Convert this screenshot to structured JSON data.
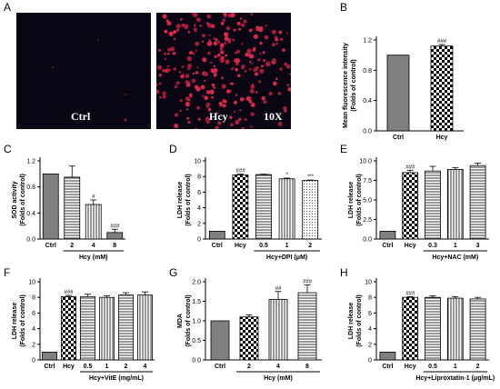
{
  "panel_letters": {
    "A": "A",
    "B": "B",
    "C": "C",
    "D": "D",
    "E": "E",
    "F": "F",
    "G": "G",
    "H": "H"
  },
  "micrographs": {
    "ctrl_label": "Ctrl",
    "hcy_label": "Hcy",
    "magnification": "10X"
  },
  "colors": {
    "bar_fill": "#ffffff",
    "ctrl_fill": "#808080",
    "axis": "#000000",
    "micro_bg": "#0a0512",
    "micro_red": "#d6284b"
  },
  "chart_data": [
    {
      "id": "B",
      "type": "bar",
      "ylabel": "Mean fluorescence intensity\n(Folds of control)",
      "categories": [
        "Ctrl",
        "Hcy"
      ],
      "values": [
        1.0,
        1.12
      ],
      "errors": [
        0,
        0.02
      ],
      "sig": [
        "",
        "###"
      ],
      "ylim": [
        0,
        1.2
      ],
      "yticks": [
        "0.0",
        "0.4",
        "0.8",
        "1.2"
      ],
      "patterns": [
        "solid",
        "check"
      ],
      "group": null
    },
    {
      "id": "C",
      "type": "bar",
      "ylabel": "SOD activity\n(Folds of control)",
      "categories": [
        "Ctrl",
        "2",
        "4",
        "8"
      ],
      "values": [
        1.0,
        0.95,
        0.53,
        0.1
      ],
      "errors": [
        0,
        0.17,
        0.07,
        0.05
      ],
      "sig": [
        "",
        "",
        "#",
        "###"
      ],
      "ylim": [
        0,
        1.2
      ],
      "yticks": [
        "0.0",
        "0.4",
        "0.8",
        "1.2"
      ],
      "patterns": [
        "solid",
        "hlines",
        "vlines",
        "solid"
      ],
      "group": {
        "label": "Hcy (mM)",
        "from": 1,
        "to": 3
      }
    },
    {
      "id": "D",
      "type": "bar",
      "ylabel": "LDH release\n(Folds of control)",
      "categories": [
        "Ctrl",
        "Hcy",
        "0.5",
        "1",
        "2"
      ],
      "values": [
        1.0,
        8.2,
        8.25,
        7.7,
        7.5
      ],
      "errors": [
        0,
        0.1,
        0.05,
        0.1,
        0.05
      ],
      "sig": [
        "",
        "###",
        "",
        "*",
        "***"
      ],
      "ylim": [
        0,
        10
      ],
      "yticks": [
        "0",
        "2",
        "4",
        "6",
        "8",
        "10"
      ],
      "patterns": [
        "solid",
        "check",
        "hlines",
        "vlines",
        "dots"
      ],
      "group": {
        "label": "Hcy+DPI (μM)",
        "from": 2,
        "to": 4
      }
    },
    {
      "id": "E",
      "type": "bar",
      "ylabel": "LDH release\n(Folds of control)",
      "categories": [
        "Ctrl",
        "Hcy",
        "0.3",
        "1",
        "3"
      ],
      "values": [
        1.0,
        8.5,
        8.7,
        8.9,
        9.4
      ],
      "errors": [
        0,
        0.3,
        0.6,
        0.25,
        0.3
      ],
      "sig": [
        "",
        "###",
        "",
        "",
        ""
      ],
      "ylim": [
        0,
        10
      ],
      "yticks": [
        "0.0",
        "2.5",
        "5.0",
        "7.5",
        "10.0"
      ],
      "patterns": [
        "solid",
        "check",
        "hlines",
        "vlines",
        "hlines"
      ],
      "group": {
        "label": "Hcy+NAC (mM)",
        "from": 2,
        "to": 4
      }
    },
    {
      "id": "F",
      "type": "bar",
      "ylabel": "LDH release\n(Folds of control)",
      "categories": [
        "Ctrl",
        "Hcy",
        "0.5",
        "1",
        "2",
        "4"
      ],
      "values": [
        1.0,
        8.1,
        8.1,
        8.0,
        8.3,
        8.3
      ],
      "errors": [
        0,
        0.15,
        0.3,
        0.2,
        0.3,
        0.4
      ],
      "sig": [
        "",
        "###",
        "",
        "",
        "",
        ""
      ],
      "ylim": [
        0,
        10
      ],
      "yticks": [
        "0",
        "2",
        "4",
        "6",
        "8",
        "10"
      ],
      "patterns": [
        "solid",
        "check",
        "hlines",
        "vlines",
        "hlines",
        "vlines"
      ],
      "group": {
        "label": "Hcy+VitE (mg/mL)",
        "from": 2,
        "to": 5
      }
    },
    {
      "id": "G",
      "type": "bar",
      "ylabel": "MDA\n(Folds of control)",
      "categories": [
        "Ctrl",
        "2",
        "4",
        "8"
      ],
      "values": [
        1.0,
        1.1,
        1.55,
        1.72
      ],
      "errors": [
        0,
        0.05,
        0.2,
        0.2
      ],
      "sig": [
        "",
        "",
        "##",
        "###"
      ],
      "ylim": [
        0,
        2.0
      ],
      "yticks": [
        "0.0",
        "0.5",
        "1.0",
        "1.5",
        "2.0"
      ],
      "patterns": [
        "solid",
        "check",
        "vlines",
        "hlines"
      ],
      "group": {
        "label": "Hcy (mM)",
        "from": 1,
        "to": 3
      }
    },
    {
      "id": "H",
      "type": "bar",
      "ylabel": "LDH release\n(Folds of control)",
      "categories": [
        "Ctrl",
        "Hcy",
        "0.5",
        "1",
        "2"
      ],
      "values": [
        1.0,
        8.0,
        8.0,
        7.9,
        7.8
      ],
      "errors": [
        0,
        0.1,
        0.2,
        0.2,
        0.2
      ],
      "sig": [
        "",
        "###",
        "",
        "",
        ""
      ],
      "ylim": [
        0,
        10
      ],
      "yticks": [
        "0",
        "2",
        "4",
        "6",
        "8",
        "10"
      ],
      "patterns": [
        "solid",
        "check",
        "hlines",
        "vlines",
        "hlines"
      ],
      "group": {
        "label": "Hcy+Liproxtatin-1 (μg/mL)",
        "from": 2,
        "to": 4
      }
    }
  ]
}
